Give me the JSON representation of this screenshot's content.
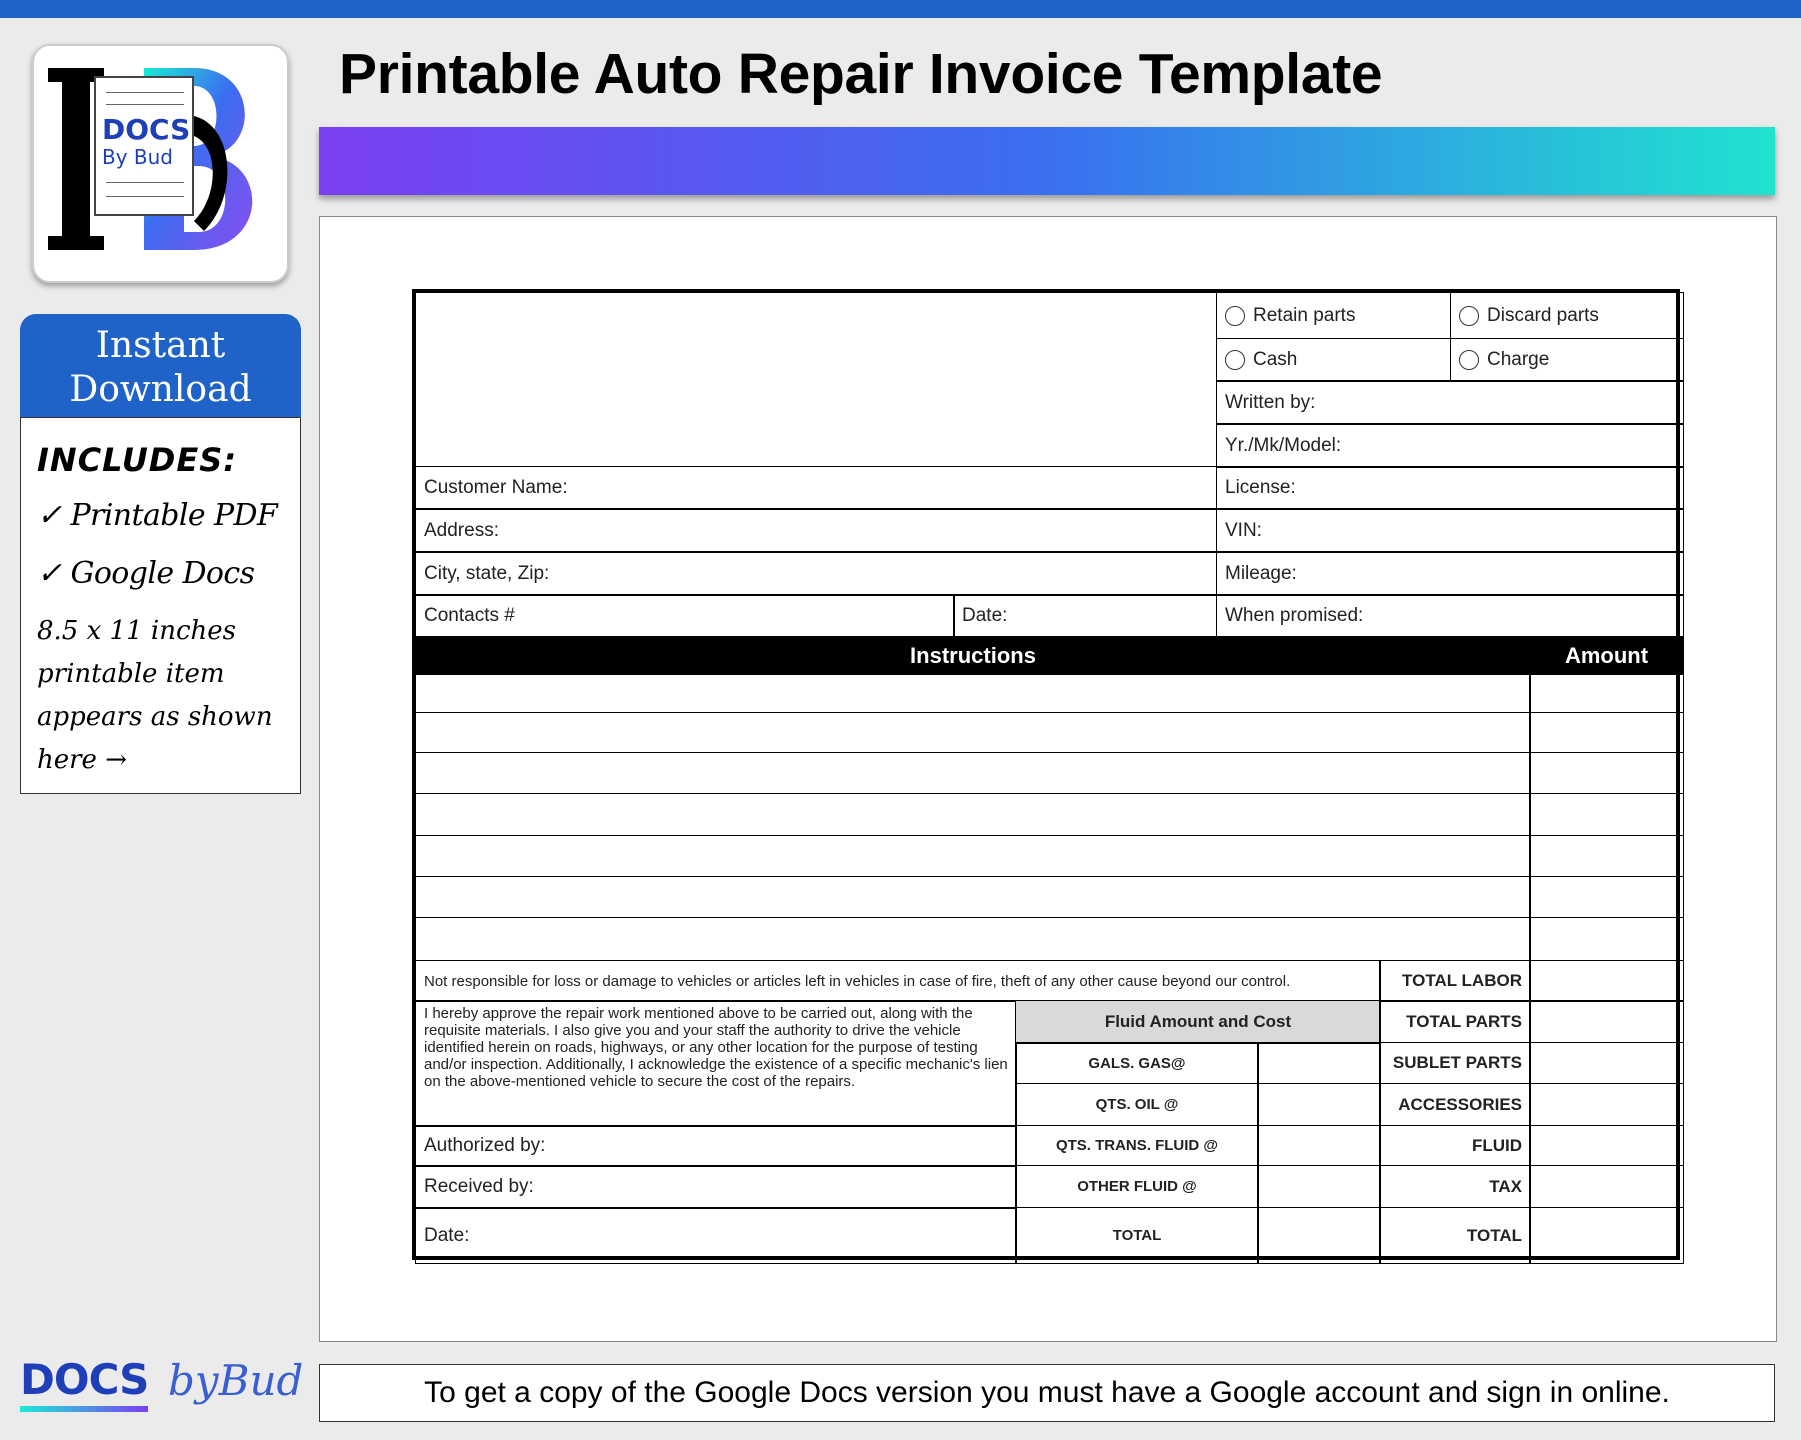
{
  "header": {
    "title": "Printable Auto Repair Invoice Template"
  },
  "logo": {
    "text_top": "DOCS",
    "text_bottom": "By Bud",
    "letters": "DB"
  },
  "sidebar": {
    "download_line1": "Instant",
    "download_line2": "Download",
    "includes_heading": "INCLUDES:",
    "items": [
      "✓ Printable PDF",
      "✓ Google Docs"
    ],
    "note_lines": [
      "8.5 x 11 inches",
      "printable item",
      "appears as shown",
      "here →"
    ]
  },
  "form": {
    "options": [
      "Retain parts",
      "Discard parts",
      "Cash",
      "Charge"
    ],
    "vehicle_fields": [
      "Written by:",
      "Yr./Mk/Model:",
      "License:",
      "VIN:",
      "Mileage:",
      "When promised:"
    ],
    "customer_fields": [
      "Customer Name:",
      "Address:",
      "City, state, Zip:",
      "Contacts #",
      "Date:"
    ],
    "instructions_header": "Instructions",
    "amount_header": "Amount",
    "disclaimer": "Not responsible for loss or damage to vehicles or articles left in vehicles in case of fire, theft of any other cause beyond our control.",
    "approval": "I hereby approve the repair work mentioned above to be carried out, along with the requisite materials. I also give you and your staff the authority to drive the vehicle identified herein on roads, highways, or any other location for the purpose of testing and/or inspection. Additionally, I acknowledge the existence of a specific mechanic's lien on the above-mentioned vehicle to secure the cost of the repairs.",
    "signature_fields": [
      "Authorized by:",
      "Received by:",
      "Date:"
    ],
    "fluid_header": "Fluid Amount and Cost",
    "fluid_rows": [
      "GALS. GAS@",
      "QTS. OIL @",
      "QTS. TRANS. FLUID @",
      "OTHER FLUID @",
      "TOTAL"
    ],
    "totals": [
      "TOTAL LABOR",
      "TOTAL PARTS",
      "SUBLET PARTS",
      "ACCESSORIES",
      "FLUID",
      "TAX",
      "TOTAL"
    ]
  },
  "footer": {
    "notice": "To get a copy of the Google Docs version you must have a Google account and sign in online."
  },
  "brand": {
    "docs": "DOCS",
    "script": "byBud"
  },
  "colors": {
    "accent": "#1f63c8",
    "gradient_start": "#7b3ff2",
    "gradient_end": "#20e3cf",
    "fluid_header_bg": "#d9d9d9"
  }
}
